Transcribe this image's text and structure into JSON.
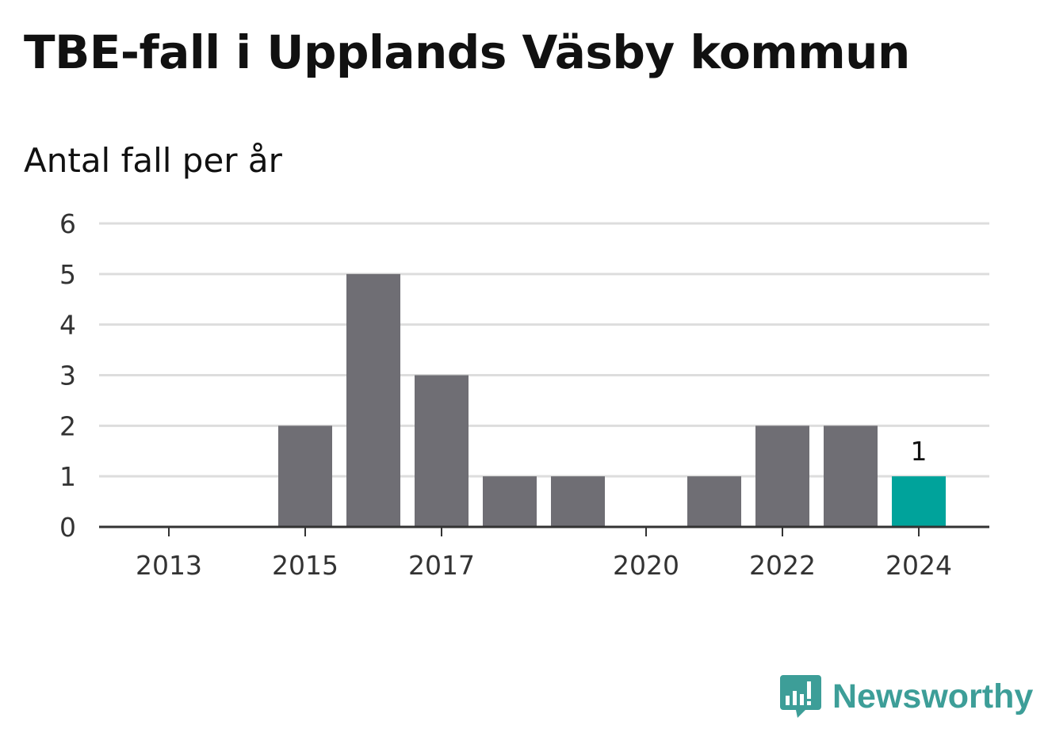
{
  "title": "TBE-fall i Upplands Väsby kommun",
  "subtitle": "Antal fall per år",
  "brand": {
    "name": "Newsworthy",
    "color": "#3d9e98",
    "icon": "newsworthy-bar-chart-icon"
  },
  "colors": {
    "bar": "#6f6e74",
    "highlight": "#00a39b",
    "grid": "#dddddd",
    "axis": "#333333"
  },
  "chart_data": {
    "type": "bar",
    "categories": [
      "2013",
      "2014",
      "2015",
      "2016",
      "2017",
      "2018",
      "2019",
      "2020",
      "2021",
      "2022",
      "2023",
      "2024"
    ],
    "values": [
      0,
      0,
      2,
      5,
      3,
      1,
      1,
      0,
      1,
      2,
      2,
      1
    ],
    "highlight_index": 11,
    "x_tick_labels": [
      "2013",
      "2015",
      "2017",
      "2020",
      "2022",
      "2024"
    ],
    "y_ticks": [
      0,
      1,
      2,
      3,
      4,
      5,
      6
    ],
    "ylim": [
      0,
      6
    ],
    "data_labels": [
      {
        "category": "2024",
        "text": "1"
      }
    ],
    "grid": true,
    "legend": "none"
  }
}
